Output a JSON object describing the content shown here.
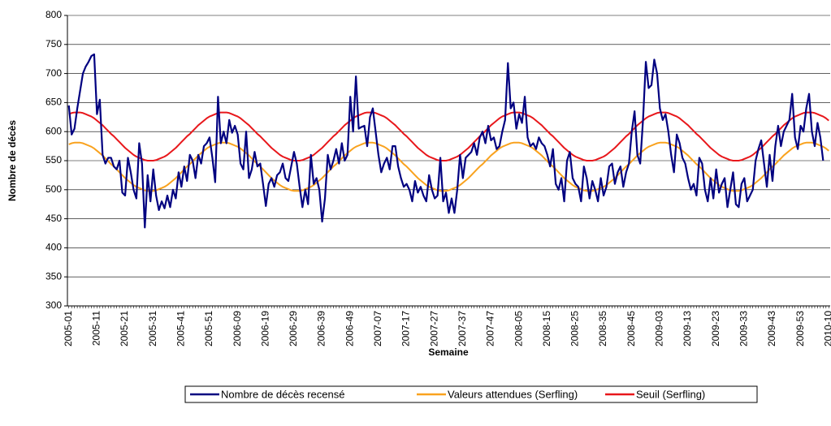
{
  "chart_data": {
    "type": "line",
    "y_label": "Nombre de décès",
    "x_label": "Semaine",
    "ylim": [
      300,
      800
    ],
    "yticks": [
      300,
      350,
      400,
      450,
      500,
      550,
      600,
      650,
      700,
      750,
      800
    ],
    "grid": true,
    "legend": "bottom",
    "categories": [
      "2005-01",
      null,
      null,
      null,
      null,
      null,
      null,
      null,
      null,
      null,
      "2005-11",
      null,
      null,
      null,
      null,
      null,
      null,
      null,
      null,
      null,
      "2005-21",
      null,
      null,
      null,
      null,
      null,
      null,
      null,
      null,
      null,
      "2005-31",
      null,
      null,
      null,
      null,
      null,
      null,
      null,
      null,
      null,
      "2005-41",
      null,
      null,
      null,
      null,
      null,
      null,
      null,
      null,
      null,
      "2005-51",
      null,
      null,
      null,
      null,
      null,
      null,
      null,
      null,
      null,
      "2006-09",
      null,
      null,
      null,
      null,
      null,
      null,
      null,
      null,
      null,
      "2006-19",
      null,
      null,
      null,
      null,
      null,
      null,
      null,
      null,
      null,
      "2006-29",
      null,
      null,
      null,
      null,
      null,
      null,
      null,
      null,
      null,
      "2006-39",
      null,
      null,
      null,
      null,
      null,
      null,
      null,
      null,
      null,
      "2006-49",
      null,
      null,
      null,
      null,
      null,
      null,
      null,
      null,
      null,
      "2007-07",
      null,
      null,
      null,
      null,
      null,
      null,
      null,
      null,
      null,
      "2007-17",
      null,
      null,
      null,
      null,
      null,
      null,
      null,
      null,
      null,
      "2007-27",
      null,
      null,
      null,
      null,
      null,
      null,
      null,
      null,
      null,
      "2007-37",
      null,
      null,
      null,
      null,
      null,
      null,
      null,
      null,
      null,
      "2007-47",
      null,
      null,
      null,
      null,
      null,
      null,
      null,
      null,
      null,
      "2008-05",
      null,
      null,
      null,
      null,
      null,
      null,
      null,
      null,
      null,
      "2008-15",
      null,
      null,
      null,
      null,
      null,
      null,
      null,
      null,
      null,
      "2008-25",
      null,
      null,
      null,
      null,
      null,
      null,
      null,
      null,
      null,
      "2008-35",
      null,
      null,
      null,
      null,
      null,
      null,
      null,
      null,
      null,
      "2008-45",
      null,
      null,
      null,
      null,
      null,
      null,
      null,
      null,
      null,
      "2009-03",
      null,
      null,
      null,
      null,
      null,
      null,
      null,
      null,
      null,
      "2009-13",
      null,
      null,
      null,
      null,
      null,
      null,
      null,
      null,
      null,
      "2009-23",
      null,
      null,
      null,
      null,
      null,
      null,
      null,
      null,
      null,
      "2009-33",
      null,
      null,
      null,
      null,
      null,
      null,
      null,
      null,
      null,
      "2009-43",
      null,
      null,
      null,
      null,
      null,
      null,
      null,
      null,
      null,
      "2009-53",
      null,
      null,
      null,
      null,
      null,
      null,
      null,
      null,
      null,
      "2010-10"
    ],
    "series": [
      {
        "name": "Nombre de décès recensé",
        "color": "#000080",
        "values": [
          645,
          595,
          605,
          640,
          670,
          700,
          712,
          720,
          730,
          733,
          630,
          655,
          560,
          545,
          555,
          555,
          540,
          535,
          550,
          495,
          490,
          555,
          530,
          500,
          485,
          580,
          545,
          435,
          525,
          480,
          535,
          490,
          465,
          480,
          468,
          490,
          470,
          500,
          485,
          530,
          505,
          540,
          515,
          560,
          550,
          520,
          560,
          545,
          575,
          580,
          590,
          555,
          513,
          660,
          580,
          600,
          580,
          620,
          598,
          610,
          595,
          545,
          535,
          600,
          520,
          535,
          565,
          540,
          545,
          510,
          472,
          510,
          520,
          505,
          525,
          530,
          545,
          520,
          515,
          540,
          565,
          545,
          505,
          470,
          500,
          475,
          560,
          510,
          520,
          500,
          445,
          485,
          560,
          535,
          550,
          570,
          545,
          580,
          550,
          560,
          660,
          600,
          695,
          605,
          608,
          610,
          575,
          625,
          640,
          600,
          560,
          530,
          545,
          555,
          535,
          575,
          575,
          540,
          520,
          505,
          510,
          500,
          480,
          515,
          495,
          505,
          490,
          480,
          525,
          500,
          485,
          490,
          555,
          480,
          495,
          460,
          485,
          460,
          500,
          560,
          520,
          555,
          560,
          565,
          580,
          560,
          590,
          600,
          580,
          610,
          585,
          590,
          570,
          575,
          600,
          620,
          718,
          640,
          650,
          605,
          630,
          615,
          660,
          590,
          575,
          580,
          570,
          590,
          580,
          575,
          560,
          540,
          570,
          510,
          500,
          520,
          480,
          550,
          565,
          520,
          510,
          505,
          480,
          540,
          520,
          485,
          515,
          500,
          480,
          520,
          490,
          505,
          540,
          545,
          510,
          530,
          540,
          505,
          530,
          545,
          600,
          635,
          560,
          545,
          620,
          720,
          675,
          680,
          724,
          700,
          640,
          620,
          630,
          600,
          560,
          530,
          595,
          580,
          555,
          545,
          520,
          500,
          510,
          490,
          555,
          545,
          500,
          480,
          520,
          485,
          535,
          495,
          510,
          520,
          470,
          500,
          530,
          475,
          470,
          510,
          520,
          480,
          490,
          500,
          550,
          570,
          585,
          545,
          505,
          560,
          515,
          575,
          610,
          575,
          600,
          610,
          620,
          665,
          590,
          570,
          610,
          600,
          640,
          665,
          600,
          575,
          615,
          590,
          550,
          null,
          null
        ]
      },
      {
        "name": "Valeurs attendues (Serfling)",
        "color": "#f9a21e",
        "values": [
          578,
          580,
          581,
          581,
          581,
          580,
          578,
          576,
          574,
          571,
          567,
          563,
          559,
          554,
          549,
          544,
          540,
          535,
          530,
          525,
          520,
          516,
          512,
          508,
          505,
          503,
          501,
          499,
          498,
          498,
          498,
          499,
          501,
          503,
          505,
          508,
          512,
          516,
          520,
          525,
          530,
          535,
          540,
          544,
          549,
          554,
          559,
          563,
          567,
          571,
          574,
          576,
          578,
          580,
          581,
          581,
          581,
          580,
          578,
          576,
          574,
          571,
          567,
          563,
          559,
          554,
          549,
          544,
          540,
          535,
          530,
          525,
          520,
          516,
          512,
          508,
          505,
          503,
          501,
          499,
          498,
          498,
          498,
          499,
          501,
          503,
          505,
          508,
          512,
          516,
          520,
          525,
          530,
          535,
          540,
          544,
          549,
          554,
          559,
          563,
          567,
          571,
          574,
          576,
          578,
          580,
          581,
          581,
          581,
          580,
          578,
          576,
          574,
          571,
          567,
          563,
          559,
          554,
          549,
          544,
          540,
          535,
          530,
          525,
          520,
          516,
          512,
          508,
          505,
          503,
          501,
          499,
          498,
          498,
          498,
          499,
          501,
          503,
          505,
          508,
          512,
          516,
          520,
          525,
          530,
          535,
          540,
          544,
          549,
          554,
          559,
          563,
          567,
          571,
          574,
          576,
          578,
          580,
          581,
          581,
          581,
          580,
          578,
          576,
          574,
          571,
          567,
          563,
          559,
          554,
          549,
          544,
          540,
          535,
          530,
          525,
          520,
          516,
          512,
          508,
          505,
          503,
          501,
          499,
          498,
          498,
          498,
          499,
          501,
          503,
          505,
          508,
          512,
          516,
          520,
          525,
          530,
          535,
          540,
          544,
          549,
          554,
          559,
          563,
          567,
          571,
          574,
          576,
          578,
          580,
          581,
          581,
          581,
          580,
          578,
          576,
          574,
          571,
          567,
          563,
          559,
          554,
          549,
          544,
          540,
          535,
          530,
          525,
          520,
          516,
          512,
          508,
          505,
          503,
          501,
          499,
          498,
          498,
          498,
          499,
          501,
          503,
          505,
          508,
          512,
          516,
          520,
          525,
          530,
          535,
          540,
          544,
          549,
          554,
          559,
          563,
          567,
          571,
          574,
          576,
          578,
          580,
          581,
          581,
          581,
          580,
          578,
          576,
          574,
          571,
          567
        ]
      },
      {
        "name": "Seuil (Serfling)",
        "color": "#e8171b",
        "values": [
          630,
          632,
          633,
          633,
          633,
          632,
          630,
          628,
          626,
          623,
          619,
          615,
          611,
          606,
          601,
          596,
          592,
          587,
          582,
          577,
          572,
          568,
          564,
          560,
          557,
          555,
          553,
          551,
          550,
          550,
          550,
          551,
          553,
          555,
          557,
          560,
          564,
          568,
          572,
          577,
          582,
          587,
          592,
          596,
          601,
          606,
          611,
          615,
          619,
          623,
          626,
          628,
          630,
          632,
          633,
          633,
          633,
          632,
          630,
          628,
          626,
          623,
          619,
          615,
          611,
          606,
          601,
          596,
          592,
          587,
          582,
          577,
          572,
          568,
          564,
          560,
          557,
          555,
          553,
          551,
          550,
          550,
          550,
          551,
          553,
          555,
          557,
          560,
          564,
          568,
          572,
          577,
          582,
          587,
          592,
          596,
          601,
          606,
          611,
          615,
          619,
          623,
          626,
          628,
          630,
          632,
          633,
          633,
          633,
          632,
          630,
          628,
          626,
          623,
          619,
          615,
          611,
          606,
          601,
          596,
          592,
          587,
          582,
          577,
          572,
          568,
          564,
          560,
          557,
          555,
          553,
          551,
          550,
          550,
          550,
          551,
          553,
          555,
          557,
          560,
          564,
          568,
          572,
          577,
          582,
          587,
          592,
          596,
          601,
          606,
          611,
          615,
          619,
          623,
          626,
          628,
          630,
          632,
          633,
          633,
          633,
          632,
          630,
          628,
          626,
          623,
          619,
          615,
          611,
          606,
          601,
          596,
          592,
          587,
          582,
          577,
          572,
          568,
          564,
          560,
          557,
          555,
          553,
          551,
          550,
          550,
          550,
          551,
          553,
          555,
          557,
          560,
          564,
          568,
          572,
          577,
          582,
          587,
          592,
          596,
          601,
          606,
          611,
          615,
          619,
          623,
          626,
          628,
          630,
          632,
          633,
          633,
          633,
          632,
          630,
          628,
          626,
          623,
          619,
          615,
          611,
          606,
          601,
          596,
          592,
          587,
          582,
          577,
          572,
          568,
          564,
          560,
          557,
          555,
          553,
          551,
          550,
          550,
          550,
          551,
          553,
          555,
          557,
          560,
          564,
          568,
          572,
          577,
          582,
          587,
          592,
          596,
          601,
          606,
          611,
          615,
          619,
          623,
          626,
          628,
          630,
          632,
          633,
          633,
          633,
          632,
          630,
          628,
          626,
          623,
          619
        ]
      }
    ]
  }
}
